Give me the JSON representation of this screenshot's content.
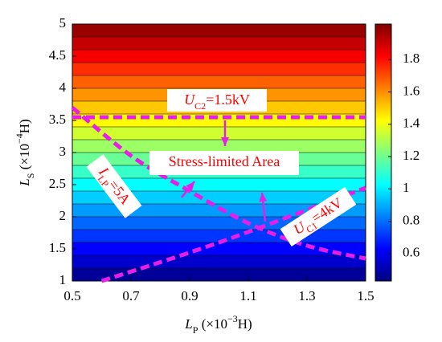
{
  "chart_data": {
    "type": "contourf",
    "colormap": "jet",
    "x_label": [
      {
        "text": "L",
        "italic": true
      },
      {
        "text": "P",
        "shift": "sub"
      },
      {
        "text": " (×10"
      },
      {
        "text": "−3",
        "shift": "sup"
      },
      {
        "text": "H)"
      }
    ],
    "y_label": [
      {
        "text": "L",
        "italic": true
      },
      {
        "text": "S",
        "shift": "sub"
      },
      {
        "text": " (×10"
      },
      {
        "text": "−4",
        "shift": "sup"
      },
      {
        "text": "H)"
      }
    ],
    "xlim": [
      0.5,
      1.5
    ],
    "ylim": [
      1,
      5
    ],
    "xticks": [
      0.5,
      0.7,
      0.9,
      1.1,
      1.3,
      1.5
    ],
    "yticks": [
      1,
      1.5,
      2,
      2.5,
      3,
      3.5,
      4,
      4.5,
      5
    ],
    "levels": [
      1,
      1.2,
      1.4,
      1.6,
      1.8,
      2,
      2.2,
      2.4,
      2.6,
      2.8,
      3,
      3.2,
      3.4,
      3.6,
      3.8,
      4,
      4.2,
      4.4,
      4.6,
      4.8,
      5
    ],
    "band_values": [
      0.47,
      0.55,
      0.63,
      0.71,
      0.79,
      0.87,
      0.95,
      1.03,
      1.11,
      1.19,
      1.27,
      1.35,
      1.43,
      1.51,
      1.59,
      1.67,
      1.75,
      1.83,
      1.91,
      1.98
    ],
    "clim": [
      0.43,
      2.02
    ],
    "cticks": [
      0.6,
      0.8,
      1,
      1.2,
      1.4,
      1.6,
      1.8
    ],
    "series": [
      {
        "name": [
          {
            "text": "U",
            "italic": true
          },
          {
            "text": "C2",
            "shift": "sub"
          },
          {
            "text": "=1.5kV"
          }
        ],
        "color": "#e81ee8",
        "x": [
          0.5,
          1.5
        ],
        "values": [
          3.55,
          3.55
        ]
      },
      {
        "name": [
          {
            "text": "I",
            "italic": true
          },
          {
            "text": "LP",
            "shift": "sub"
          },
          {
            "text": "=5A"
          }
        ],
        "color": "#e81ee8",
        "x": [
          0.5,
          0.7,
          0.9,
          1.1,
          1.3,
          1.5
        ],
        "values": [
          3.7,
          2.95,
          2.4,
          1.9,
          1.55,
          1.35
        ]
      },
      {
        "name": [
          {
            "text": "U",
            "italic": true
          },
          {
            "text": "C1",
            "shift": "sub"
          },
          {
            "text": "=4kV"
          }
        ],
        "color": "#e81ee8",
        "x": [
          0.6,
          1.0,
          1.5
        ],
        "values": [
          1.0,
          1.6,
          2.45
        ]
      }
    ],
    "annotation": "Stress-limited Area"
  }
}
